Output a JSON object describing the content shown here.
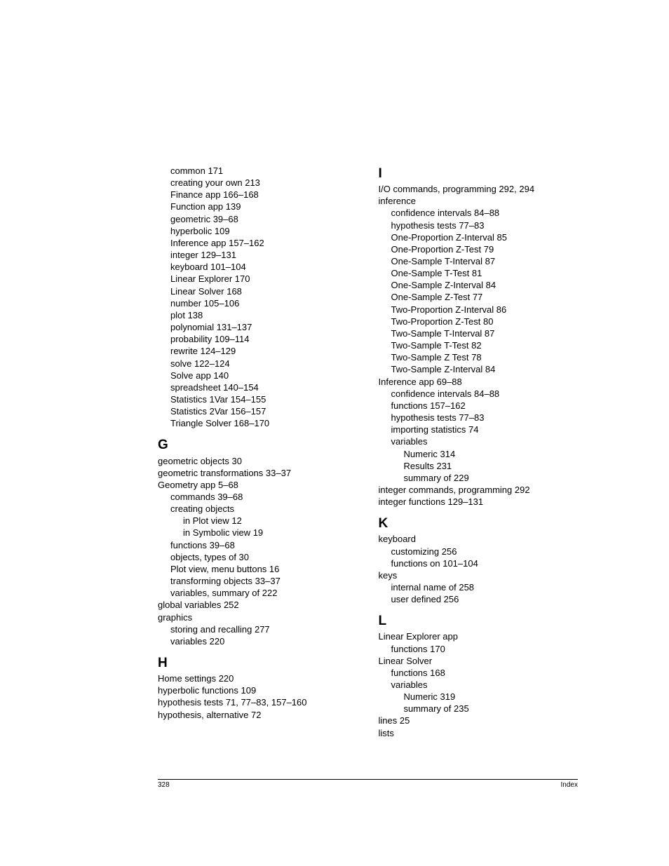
{
  "footer": {
    "page_number": "328",
    "section": "Index"
  },
  "col1": {
    "continued": [
      "common 171",
      "creating your own 213",
      "Finance app 166–168",
      "Function app 139",
      "geometric 39–68",
      "hyperbolic 109",
      "Inference app 157–162",
      "integer 129–131",
      "keyboard 101–104",
      "Linear Explorer 170",
      "Linear Solver 168",
      "number 105–106",
      "plot 138",
      "polynomial 131–137",
      "probability 109–114",
      "rewrite 124–129",
      "solve 122–124",
      "Solve app 140",
      "spreadsheet 140–154",
      "Statistics 1Var 154–155",
      "Statistics 2Var 156–157",
      "Triangle Solver 168–170"
    ],
    "G_heading": "G",
    "G_entries": [
      {
        "t": "geometric objects 30",
        "i": 0
      },
      {
        "t": "geometric transformations 33–37",
        "i": 0
      },
      {
        "t": "Geometry app 5–68",
        "i": 0
      },
      {
        "t": "commands 39–68",
        "i": 1
      },
      {
        "t": "creating objects",
        "i": 1
      },
      {
        "t": "in Plot view 12",
        "i": 2
      },
      {
        "t": "in Symbolic view 19",
        "i": 2
      },
      {
        "t": "functions 39–68",
        "i": 1
      },
      {
        "t": "objects, types of 30",
        "i": 1
      },
      {
        "t": "Plot view, menu buttons 16",
        "i": 1
      },
      {
        "t": "transforming objects 33–37",
        "i": 1
      },
      {
        "t": "variables, summary of 222",
        "i": 1
      },
      {
        "t": "global variables 252",
        "i": 0
      },
      {
        "t": "graphics",
        "i": 0
      },
      {
        "t": "storing and recalling 277",
        "i": 1
      },
      {
        "t": "variables 220",
        "i": 1
      }
    ],
    "H_heading": "H",
    "H_entries": [
      {
        "t": "Home settings 220",
        "i": 0
      },
      {
        "t": "hyperbolic functions 109",
        "i": 0
      },
      {
        "t": "hypothesis tests 71, 77–83, 157–160",
        "i": 0
      },
      {
        "t": "hypothesis, alternative 72",
        "i": 0
      }
    ]
  },
  "col2": {
    "I_heading": "I",
    "I_entries": [
      {
        "t": "I/O commands, programming 292, 294",
        "i": 0
      },
      {
        "t": "inference",
        "i": 0
      },
      {
        "t": "confidence intervals 84–88",
        "i": 1
      },
      {
        "t": "hypothesis tests 77–83",
        "i": 1
      },
      {
        "t": "One-Proportion Z-Interval 85",
        "i": 1
      },
      {
        "t": "One-Proportion Z-Test 79",
        "i": 1
      },
      {
        "t": "One-Sample T-Interval 87",
        "i": 1
      },
      {
        "t": "One-Sample T-Test 81",
        "i": 1
      },
      {
        "t": "One-Sample Z-Interval 84",
        "i": 1
      },
      {
        "t": "One-Sample Z-Test 77",
        "i": 1
      },
      {
        "t": "Two-Proportion Z-Interval 86",
        "i": 1
      },
      {
        "t": "Two-Proportion Z-Test 80",
        "i": 1
      },
      {
        "t": "Two-Sample T-Interval 87",
        "i": 1
      },
      {
        "t": "Two-Sample T-Test 82",
        "i": 1
      },
      {
        "t": "Two-Sample Z Test 78",
        "i": 1
      },
      {
        "t": "Two-Sample Z-Interval 84",
        "i": 1
      },
      {
        "t": "Inference app 69–88",
        "i": 0
      },
      {
        "t": "confidence intervals 84–88",
        "i": 1
      },
      {
        "t": "functions 157–162",
        "i": 1
      },
      {
        "t": "hypothesis tests 77–83",
        "i": 1
      },
      {
        "t": "importing statistics 74",
        "i": 1
      },
      {
        "t": "variables",
        "i": 1
      },
      {
        "t": "Numeric 314",
        "i": 2
      },
      {
        "t": "Results 231",
        "i": 2
      },
      {
        "t": "summary of 229",
        "i": 2
      },
      {
        "t": "integer commands, programming 292",
        "i": 0
      },
      {
        "t": "integer functions 129–131",
        "i": 0
      }
    ],
    "K_heading": "K",
    "K_entries": [
      {
        "t": "keyboard",
        "i": 0
      },
      {
        "t": "customizing 256",
        "i": 1
      },
      {
        "t": "functions on 101–104",
        "i": 1
      },
      {
        "t": "keys",
        "i": 0
      },
      {
        "t": "internal name of 258",
        "i": 1
      },
      {
        "t": "user defined 256",
        "i": 1
      }
    ],
    "L_heading": "L",
    "L_entries": [
      {
        "t": "Linear Explorer app",
        "i": 0
      },
      {
        "t": "functions 170",
        "i": 1
      },
      {
        "t": "Linear Solver",
        "i": 0
      },
      {
        "t": "functions 168",
        "i": 1
      },
      {
        "t": "variables",
        "i": 1
      },
      {
        "t": "Numeric 319",
        "i": 2
      },
      {
        "t": "summary of 235",
        "i": 2
      },
      {
        "t": "lines 25",
        "i": 0
      },
      {
        "t": "lists",
        "i": 0
      }
    ]
  }
}
